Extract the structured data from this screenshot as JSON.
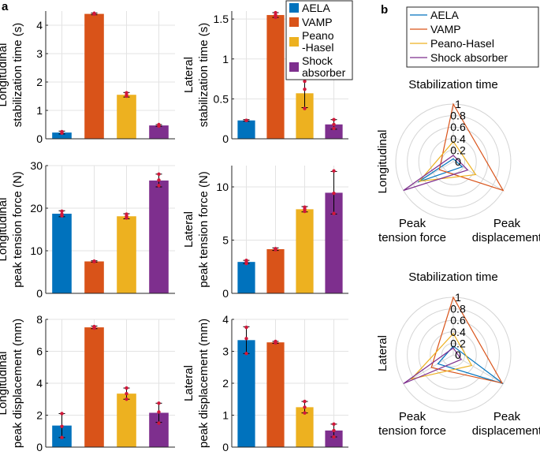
{
  "panel_labels": {
    "a": "a",
    "b": "b"
  },
  "colors": {
    "AELA": "#0072BD",
    "VAMP": "#D95319",
    "Peano-Hasel": "#EDB120",
    "Shock absorber": "#7E2F8E",
    "point": "#d1183a",
    "grid": "#e3e3e3",
    "axis": "#262626"
  },
  "bar_legend": {
    "entries": [
      {
        "name": "AELA",
        "lines": [
          "AELA"
        ],
        "color": "#0072BD"
      },
      {
        "name": "VAMP",
        "lines": [
          "VAMP"
        ],
        "color": "#D95319"
      },
      {
        "name": "Peano-Hasel",
        "lines": [
          "Peano",
          "-Hasel"
        ],
        "color": "#EDB120"
      },
      {
        "name": "Shock absorber",
        "lines": [
          "Shock",
          "absorber"
        ],
        "color": "#7E2F8E"
      }
    ]
  },
  "radar_legend": {
    "entries": [
      {
        "name": "AELA",
        "label": "AELA",
        "color": "#0072BD"
      },
      {
        "name": "VAMP",
        "label": "VAMP",
        "color": "#D95319"
      },
      {
        "name": "Peano-Hasel",
        "label": "Peano-Hasel",
        "color": "#EDB120"
      },
      {
        "name": "Shock absorber",
        "label": "Shock absorber",
        "color": "#7E2F8E"
      }
    ]
  },
  "chart_data": [
    {
      "type": "bar",
      "id": "long-stab",
      "ylabel": [
        "Longitudinal",
        "stabilization time (s)"
      ],
      "ylim": [
        0,
        4.5
      ],
      "yticks": [
        0,
        1,
        2,
        3,
        4
      ],
      "ytick_labels": [
        "0",
        "1",
        "2",
        "3",
        "4"
      ],
      "categories": [
        "AELA",
        "VAMP",
        "Peano-Hasel",
        "Shock absorber"
      ],
      "values": [
        0.22,
        4.4,
        1.55,
        0.47
      ],
      "errors": [
        0.05,
        0.03,
        0.08,
        0.03
      ],
      "points": [
        [
          0.2,
          0.25,
          0.21
        ],
        [
          4.39,
          4.42,
          4.4
        ],
        [
          1.5,
          1.62,
          1.54
        ],
        [
          0.45,
          0.5,
          0.47
        ]
      ]
    },
    {
      "type": "bar",
      "id": "lat-stab",
      "ylabel": [
        "Lateral",
        "stabilization time (s)"
      ],
      "ylim": [
        0,
        1.6
      ],
      "yticks": [
        0,
        0.5,
        1,
        1.5
      ],
      "ytick_labels": [
        "0",
        "0.5",
        "1",
        "1.5"
      ],
      "categories": [
        "AELA",
        "VAMP",
        "Peano-Hasel",
        "Shock absorber"
      ],
      "values": [
        0.23,
        1.55,
        0.57,
        0.18
      ],
      "errors": [
        0.01,
        0.03,
        0.18,
        0.06
      ],
      "points": [
        [
          0.23,
          0.23,
          0.23
        ],
        [
          1.52,
          1.58,
          1.55
        ],
        [
          0.38,
          0.72,
          0.62
        ],
        [
          0.13,
          0.24,
          0.18
        ]
      ]
    },
    {
      "type": "bar",
      "id": "long-tension",
      "ylabel": [
        "Longitudinal",
        "peak tension force (N)"
      ],
      "ylim": [
        0,
        30
      ],
      "yticks": [
        0,
        10,
        20,
        30
      ],
      "ytick_labels": [
        "0",
        "10",
        "20",
        "30"
      ],
      "categories": [
        "AELA",
        "VAMP",
        "Peano-Hasel",
        "Shock absorber"
      ],
      "values": [
        18.7,
        7.5,
        18.1,
        26.5
      ],
      "errors": [
        0.7,
        0.15,
        0.6,
        1.5
      ],
      "points": [
        [
          18.2,
          19.3,
          18.6
        ],
        [
          7.45,
          7.55,
          7.5
        ],
        [
          17.7,
          18.6,
          18.1
        ],
        [
          25.3,
          28,
          26.6
        ]
      ]
    },
    {
      "type": "bar",
      "id": "lat-tension",
      "ylabel": [
        "Lateral",
        "peak tension force (N)"
      ],
      "ylim": [
        0,
        12
      ],
      "yticks": [
        0,
        5,
        10
      ],
      "ytick_labels": [
        "0",
        "5",
        "10"
      ],
      "categories": [
        "AELA",
        "VAMP",
        "Peano-Hasel",
        "Shock absorber"
      ],
      "values": [
        2.95,
        4.15,
        7.9,
        9.45
      ],
      "errors": [
        0.15,
        0.12,
        0.25,
        2.0
      ],
      "points": [
        [
          2.8,
          3.1,
          2.95
        ],
        [
          4.1,
          4.2,
          4.15
        ],
        [
          7.7,
          8.1,
          7.9
        ],
        [
          7.5,
          11.5,
          9.4
        ]
      ]
    },
    {
      "type": "bar",
      "id": "long-disp",
      "ylabel": [
        "Longitudinal",
        "peak displacement (mm)"
      ],
      "ylim": [
        0,
        8
      ],
      "yticks": [
        0,
        2,
        4,
        6,
        8
      ],
      "ytick_labels": [
        "0",
        "2",
        "4",
        "6",
        "8"
      ],
      "categories": [
        "AELA",
        "VAMP",
        "Peano-Hasel",
        "Shock absorber"
      ],
      "values": [
        1.35,
        7.5,
        3.35,
        2.15
      ],
      "errors": [
        0.75,
        0.08,
        0.35,
        0.6
      ],
      "points": [
        [
          0.6,
          2.1,
          1.3
        ],
        [
          7.45,
          7.55,
          7.5
        ],
        [
          3.0,
          3.7,
          3.35
        ],
        [
          1.5,
          2.75,
          2.2
        ]
      ]
    },
    {
      "type": "bar",
      "id": "lat-disp",
      "ylabel": [
        "Lateral",
        "peak displacement (mm)"
      ],
      "ylim": [
        0,
        4
      ],
      "yticks": [
        0,
        1,
        2,
        3,
        4
      ],
      "ytick_labels": [
        "0",
        "1",
        "2",
        "3",
        "4"
      ],
      "categories": [
        "AELA",
        "VAMP",
        "Peano-Hasel",
        "Shock absorber"
      ],
      "values": [
        3.35,
        3.28,
        1.25,
        0.52
      ],
      "errors": [
        0.42,
        0.03,
        0.18,
        0.2
      ],
      "points": [
        [
          2.93,
          3.75,
          3.4
        ],
        [
          3.26,
          3.31,
          3.28
        ],
        [
          1.07,
          1.43,
          1.25
        ],
        [
          0.32,
          0.72,
          0.52
        ]
      ]
    },
    {
      "type": "radar",
      "id": "radar-long",
      "side_label": "Longitudinal",
      "axes": [
        {
          "lines": [
            "Stabilization time"
          ]
        },
        {
          "lines": [
            "Peak",
            "displacement"
          ]
        },
        {
          "lines": [
            "Peak",
            "tension force"
          ]
        }
      ],
      "rlim": [
        0,
        1
      ],
      "rticks": [
        0,
        0.2,
        0.4,
        0.6,
        0.8,
        1
      ],
      "rtick_labels": [
        "0",
        "0.2",
        "0.4",
        "0.6",
        "0.8",
        "1"
      ],
      "series": [
        {
          "name": "AELA",
          "values": [
            0.05,
            0.18,
            0.71
          ]
        },
        {
          "name": "VAMP",
          "values": [
            1.0,
            1.0,
            0.28
          ]
        },
        {
          "name": "Peano-Hasel",
          "values": [
            0.35,
            0.45,
            0.68
          ]
        },
        {
          "name": "Shock absorber",
          "values": [
            0.11,
            0.29,
            1.0
          ]
        }
      ]
    },
    {
      "type": "radar",
      "id": "radar-lat",
      "side_label": "Lateral",
      "axes": [
        {
          "lines": [
            "Stabilization time"
          ]
        },
        {
          "lines": [
            "Peak",
            "displacement"
          ]
        },
        {
          "lines": [
            "Peak",
            "tension force"
          ]
        }
      ],
      "rlim": [
        0,
        1
      ],
      "rticks": [
        0,
        0.2,
        0.4,
        0.6,
        0.8,
        1
      ],
      "rtick_labels": [
        "0",
        "0.2",
        "0.4",
        "0.6",
        "0.8",
        "1"
      ],
      "series": [
        {
          "name": "AELA",
          "values": [
            0.15,
            1.0,
            0.31
          ]
        },
        {
          "name": "VAMP",
          "values": [
            1.0,
            0.98,
            0.44
          ]
        },
        {
          "name": "Peano-Hasel",
          "values": [
            0.37,
            0.37,
            0.84
          ]
        },
        {
          "name": "Shock absorber",
          "values": [
            0.12,
            0.16,
            1.0
          ]
        }
      ]
    }
  ]
}
